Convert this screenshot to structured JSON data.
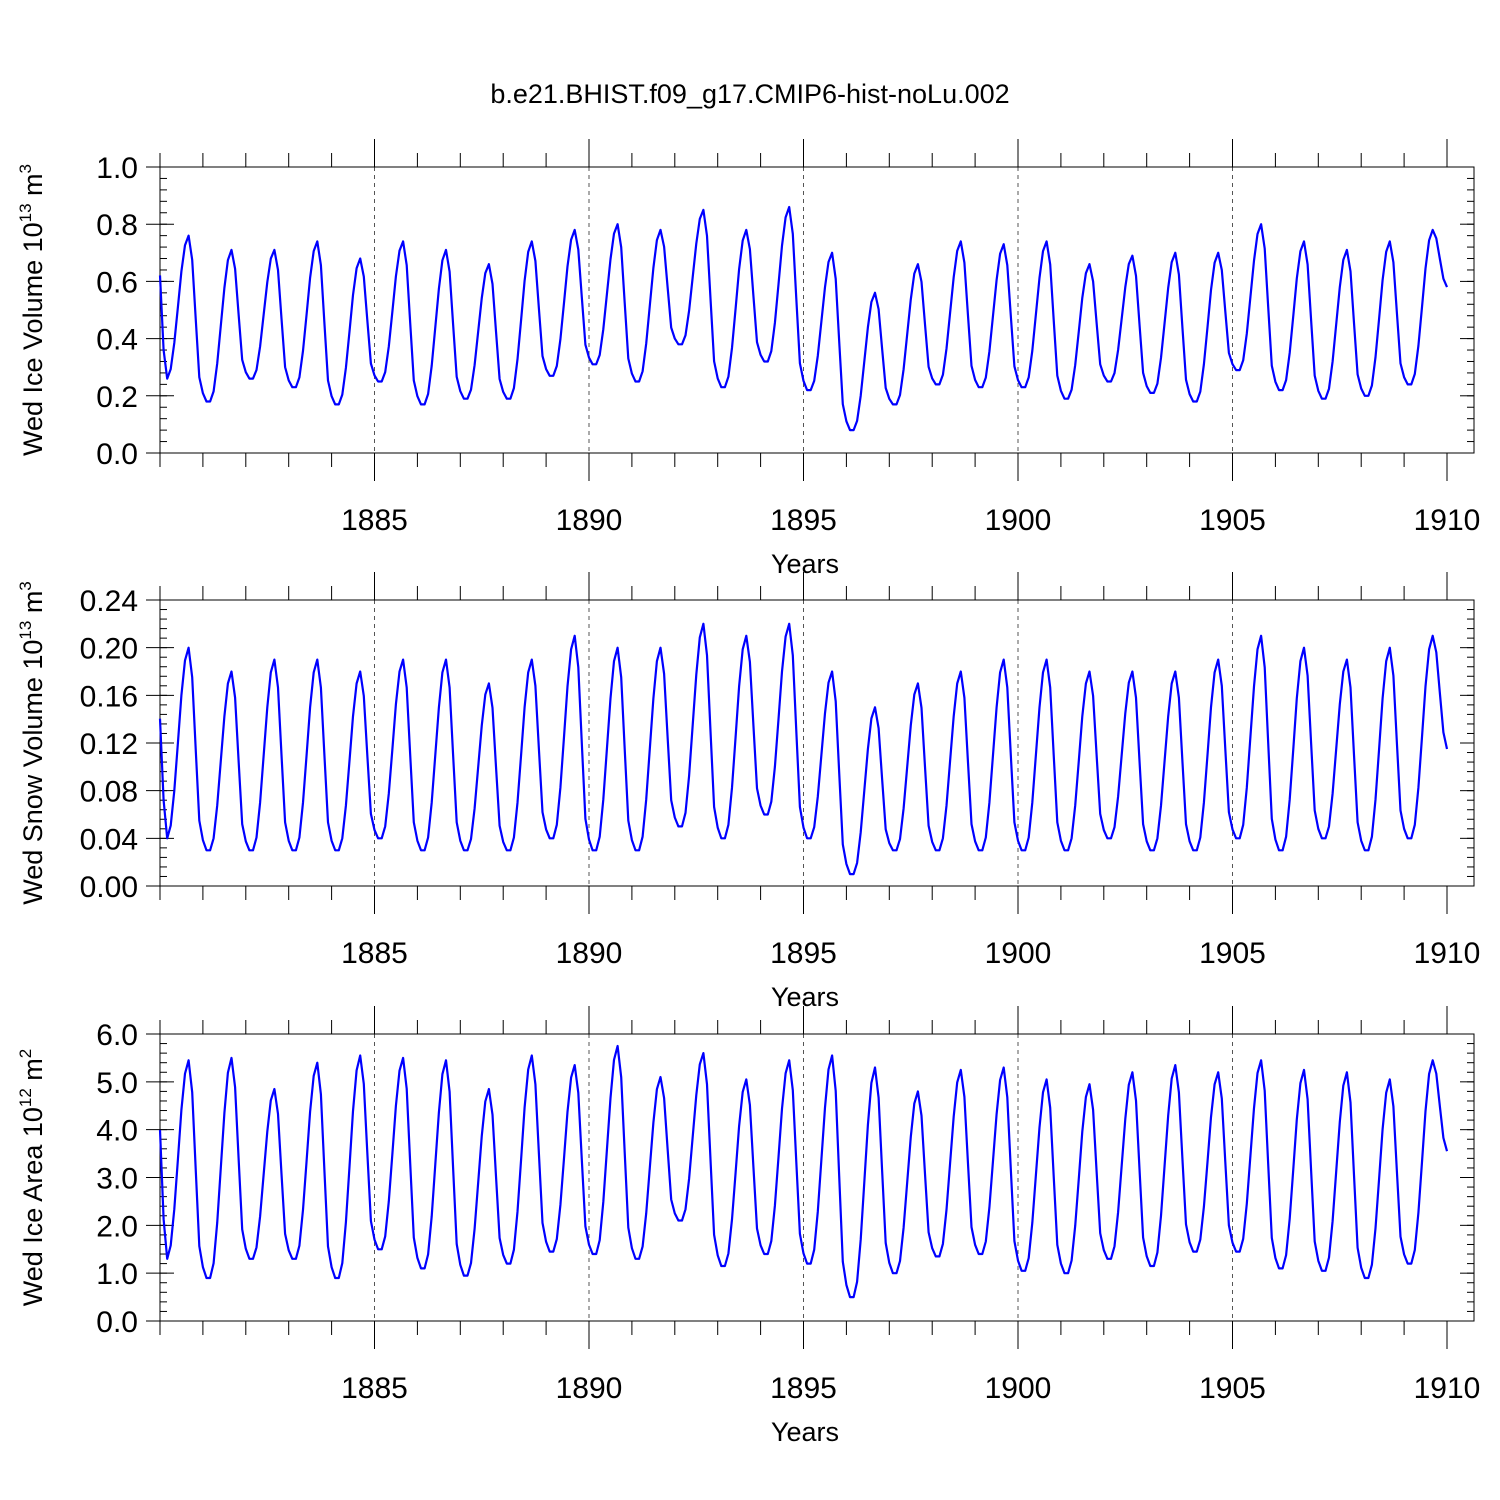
{
  "figure": {
    "title": "b.e21.BHIST.f09_g17.CMIP6-hist-noLu.002"
  },
  "chart_data": [
    {
      "type": "line",
      "ylabel": "Wed Ice Volume 10^13 m^3",
      "ylabel_parts": {
        "prefix": "Wed Ice Volume 10",
        "exp1": "13",
        "unit": " m",
        "exp2": "3"
      },
      "xlabel": "Years",
      "xlim": [
        1880.0,
        1910.0
      ],
      "ylim": [
        0.0,
        1.0
      ],
      "yticks": [
        "0.0",
        "0.2",
        "0.4",
        "0.6",
        "0.8",
        "1.0"
      ],
      "ytick_values": [
        0.0,
        0.2,
        0.4,
        0.6,
        0.8,
        1.0
      ],
      "xticks": [
        "1885",
        "1890",
        "1895",
        "1900",
        "1905",
        "1910"
      ],
      "xtick_values": [
        1885,
        1890,
        1895,
        1900,
        1905,
        1910
      ],
      "series": [
        {
          "name": "Wed Ice Volume",
          "color": "#0000ff",
          "start_year": 1880.0,
          "cycle_min": [
            0.26,
            0.18,
            0.26,
            0.23,
            0.17,
            0.25,
            0.17,
            0.19,
            0.19,
            0.27,
            0.31,
            0.25,
            0.38,
            0.23,
            0.32,
            0.22,
            0.08,
            0.17,
            0.24,
            0.23,
            0.23,
            0.19,
            0.25,
            0.21,
            0.18,
            0.29,
            0.22,
            0.19,
            0.2,
            0.24
          ],
          "cycle_max": [
            0.76,
            0.71,
            0.71,
            0.74,
            0.68,
            0.74,
            0.71,
            0.66,
            0.74,
            0.78,
            0.8,
            0.78,
            0.85,
            0.78,
            0.86,
            0.7,
            0.56,
            0.66,
            0.74,
            0.73,
            0.74,
            0.66,
            0.69,
            0.7,
            0.7,
            0.8,
            0.74,
            0.71,
            0.74,
            0.78
          ],
          "end_value": 0.58
        }
      ]
    },
    {
      "type": "line",
      "ylabel": "Wed Snow Volume 10^13 m^3",
      "ylabel_parts": {
        "prefix": "Wed Snow Volume 10",
        "exp1": "13",
        "unit": " m",
        "exp2": "3"
      },
      "xlabel": "Years",
      "xlim": [
        1880.0,
        1910.0
      ],
      "ylim": [
        0.0,
        0.24
      ],
      "yticks": [
        "0.00",
        "0.04",
        "0.08",
        "0.12",
        "0.16",
        "0.20",
        "0.24"
      ],
      "ytick_values": [
        0.0,
        0.04,
        0.08,
        0.12,
        0.16,
        0.2,
        0.24
      ],
      "xticks": [
        "1885",
        "1890",
        "1895",
        "1900",
        "1905",
        "1910"
      ],
      "xtick_values": [
        1885,
        1890,
        1895,
        1900,
        1905,
        1910
      ],
      "series": [
        {
          "name": "Wed Snow Volume",
          "color": "#0000ff",
          "start_year": 1880.0,
          "cycle_min": [
            0.04,
            0.03,
            0.03,
            0.03,
            0.03,
            0.04,
            0.03,
            0.03,
            0.03,
            0.04,
            0.03,
            0.03,
            0.05,
            0.04,
            0.06,
            0.04,
            0.01,
            0.03,
            0.03,
            0.03,
            0.03,
            0.03,
            0.04,
            0.03,
            0.03,
            0.04,
            0.03,
            0.04,
            0.03,
            0.04
          ],
          "cycle_max": [
            0.2,
            0.18,
            0.19,
            0.19,
            0.18,
            0.19,
            0.19,
            0.17,
            0.19,
            0.21,
            0.2,
            0.2,
            0.22,
            0.21,
            0.22,
            0.18,
            0.15,
            0.17,
            0.18,
            0.19,
            0.19,
            0.18,
            0.18,
            0.18,
            0.19,
            0.21,
            0.2,
            0.19,
            0.2,
            0.21
          ],
          "end_value": 0.115
        }
      ]
    },
    {
      "type": "line",
      "ylabel": "Wed Ice Area 10^12 m^2",
      "ylabel_parts": {
        "prefix": "Wed Ice Area 10",
        "exp1": "12",
        "unit": " m",
        "exp2": "2"
      },
      "xlabel": "Years",
      "xlim": [
        1880.0,
        1910.0
      ],
      "ylim": [
        0.0,
        6.0
      ],
      "yticks": [
        "0.0",
        "1.0",
        "2.0",
        "3.0",
        "4.0",
        "5.0",
        "6.0"
      ],
      "ytick_values": [
        0.0,
        1.0,
        2.0,
        3.0,
        4.0,
        5.0,
        6.0
      ],
      "xticks": [
        "1885",
        "1890",
        "1895",
        "1900",
        "1905",
        "1910"
      ],
      "xtick_values": [
        1885,
        1890,
        1895,
        1900,
        1905,
        1910
      ],
      "series": [
        {
          "name": "Wed Ice Area",
          "color": "#0000ff",
          "start_year": 1880.0,
          "cycle_min": [
            1.3,
            0.9,
            1.3,
            1.3,
            0.9,
            1.5,
            1.1,
            0.95,
            1.2,
            1.45,
            1.4,
            1.3,
            2.1,
            1.15,
            1.4,
            1.2,
            0.5,
            1.0,
            1.35,
            1.4,
            1.05,
            1.0,
            1.3,
            1.15,
            1.45,
            1.45,
            1.1,
            1.05,
            0.9,
            1.2
          ],
          "cycle_max": [
            5.45,
            5.5,
            4.85,
            5.4,
            5.55,
            5.5,
            5.45,
            4.85,
            5.55,
            5.35,
            5.75,
            5.1,
            5.6,
            5.05,
            5.45,
            5.55,
            5.3,
            4.8,
            5.25,
            5.3,
            5.05,
            4.95,
            5.2,
            5.35,
            5.2,
            5.45,
            5.25,
            5.2,
            5.05,
            5.45
          ],
          "end_value": 3.55
        }
      ]
    }
  ]
}
